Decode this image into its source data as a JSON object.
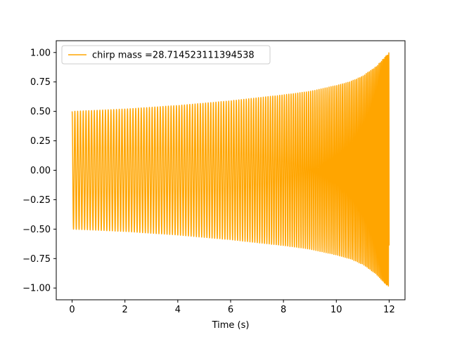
{
  "chart_data": {
    "type": "line",
    "title": "",
    "xlabel": "Time (s)",
    "ylabel": "",
    "xlim": [
      -0.6,
      12.6
    ],
    "ylim": [
      -1.1,
      1.1
    ],
    "xticks": [
      0,
      2,
      4,
      6,
      8,
      10,
      12
    ],
    "xtick_labels": [
      "0",
      "2",
      "4",
      "6",
      "8",
      "10",
      "12"
    ],
    "yticks": [
      -1.0,
      -0.75,
      -0.5,
      -0.25,
      0.0,
      0.25,
      0.5,
      0.75,
      1.0
    ],
    "ytick_labels": [
      "−1.00",
      "−0.75",
      "−0.50",
      "−0.25",
      "0.00",
      "0.25",
      "0.50",
      "0.75",
      "1.00"
    ],
    "grid": false,
    "legend_position": "top-left",
    "series": [
      {
        "name": "chirp mass =28.714523111394538",
        "color": "#ffa500",
        "t_start": 0,
        "t_end": 12,
        "amplitude_start": 0.5,
        "amplitude_end": 1.0,
        "amplitude_envelope": [
          [
            0,
            0.5
          ],
          [
            2,
            0.52
          ],
          [
            4,
            0.55
          ],
          [
            6,
            0.59
          ],
          [
            8,
            0.64
          ],
          [
            9,
            0.67
          ],
          [
            10,
            0.72
          ],
          [
            10.5,
            0.75
          ],
          [
            11,
            0.8
          ],
          [
            11.5,
            0.88
          ],
          [
            12,
            1.0
          ]
        ]
      }
    ]
  }
}
